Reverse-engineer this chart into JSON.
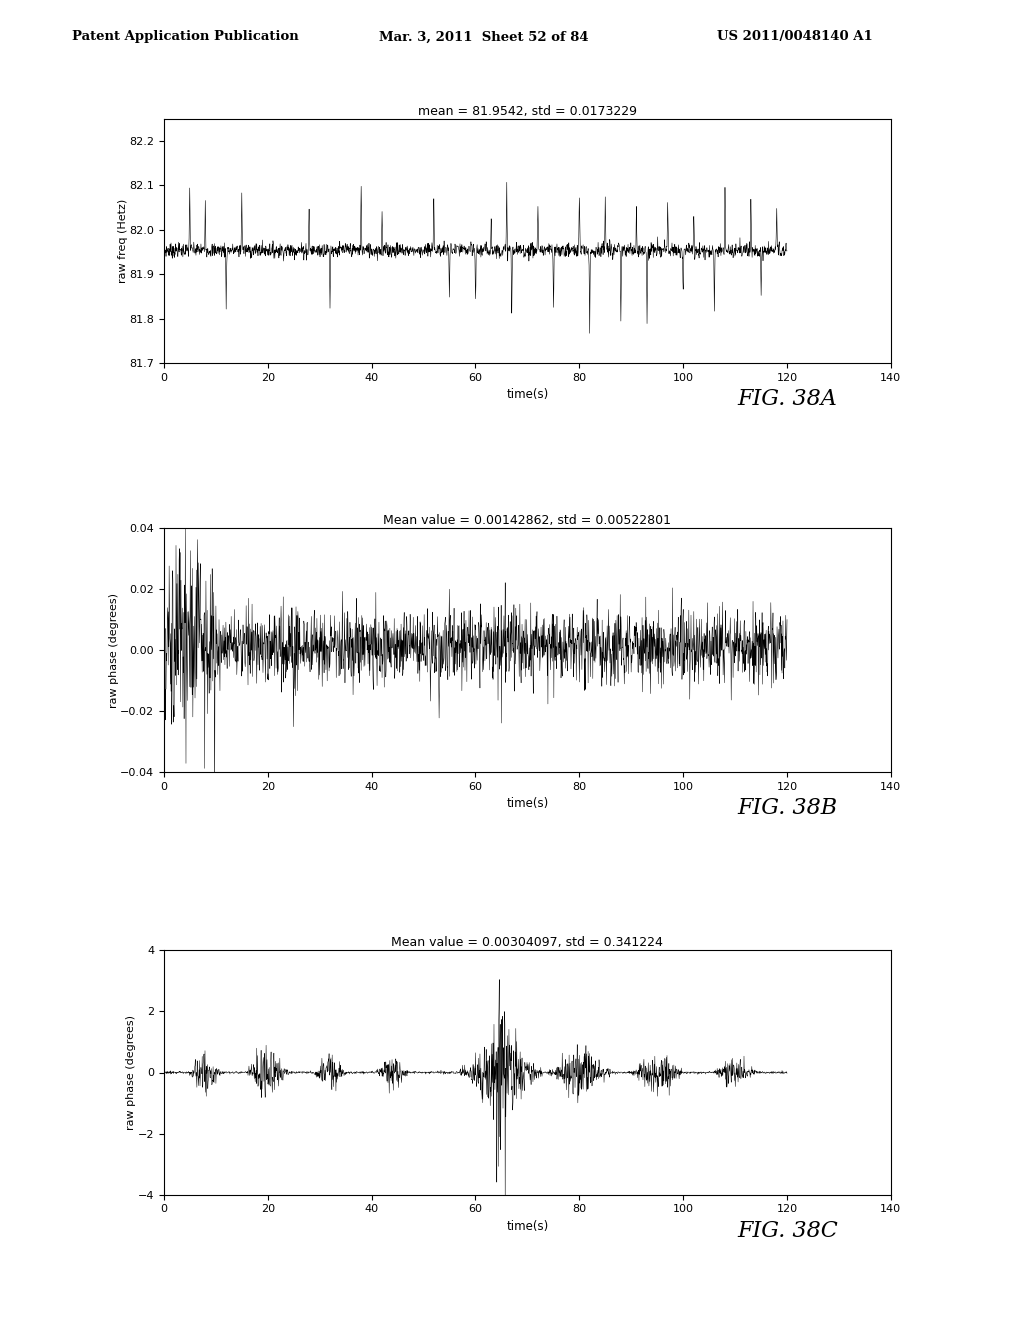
{
  "header_left": "Patent Application Publication",
  "header_mid": "Mar. 3, 2011  Sheet 52 of 84",
  "header_right": "US 2011/0048140 A1",
  "fig38A": {
    "title": "mean = 81.9542, std = 0.0173229",
    "ylabel": "raw freq (Hetz)",
    "xlabel": "time(s)",
    "label": "FIG. 38A",
    "ylim": [
      81.7,
      82.25
    ],
    "xlim": [
      0,
      140
    ],
    "yticks": [
      81.7,
      81.8,
      81.9,
      82.0,
      82.1,
      82.2
    ],
    "xticks": [
      0,
      20,
      40,
      60,
      80,
      100,
      120,
      140
    ],
    "mean": 81.9542,
    "n_points": 2000
  },
  "fig38B": {
    "title": "Mean value = 0.00142862, std = 0.00522801",
    "ylabel": "raw phase (degrees)",
    "xlabel": "time(s)",
    "label": "FIG. 38B",
    "ylim": [
      -0.04,
      0.04
    ],
    "xlim": [
      0,
      140
    ],
    "yticks": [
      -0.04,
      -0.02,
      0,
      0.02,
      0.04
    ],
    "xticks": [
      0,
      20,
      40,
      60,
      80,
      100,
      120,
      140
    ],
    "mean": 0.00142862,
    "n_points": 2000
  },
  "fig38C": {
    "title": "Mean value = 0.00304097, std = 0.341224",
    "ylabel": "raw phase (degrees)",
    "xlabel": "time(s)",
    "label": "FIG. 38C",
    "ylim": [
      -4,
      4
    ],
    "xlim": [
      0,
      140
    ],
    "yticks": [
      -4,
      -2,
      0,
      2,
      4
    ],
    "xticks": [
      0,
      20,
      40,
      60,
      80,
      100,
      120,
      140
    ],
    "mean": 0.00304097,
    "n_points": 2000
  },
  "background_color": "#ffffff",
  "line_color": "#000000"
}
